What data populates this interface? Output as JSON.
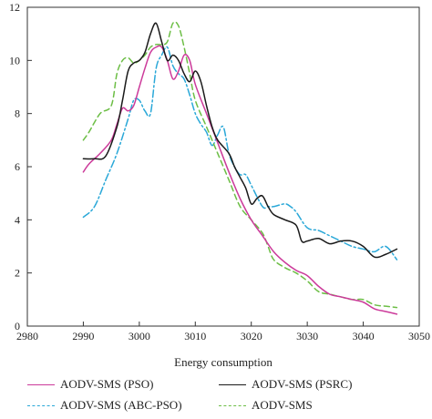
{
  "chart_data": {
    "type": "line",
    "xlabel": "Energy consumption",
    "ylabel": "",
    "xlim": [
      2980,
      3050
    ],
    "ylim": [
      0,
      12
    ],
    "xticks": [
      2980,
      2990,
      3000,
      3010,
      3020,
      3030,
      3040,
      3050
    ],
    "yticks": [
      0,
      2,
      4,
      6,
      8,
      10,
      12
    ],
    "grid": false,
    "legend_position": "bottom",
    "series": [
      {
        "name": "AODV-SMS (PSO)",
        "color": "#cc3a9a",
        "dash": "solid",
        "points": [
          [
            2990,
            5.8
          ],
          [
            2991,
            6.1
          ],
          [
            2993,
            6.5
          ],
          [
            2995,
            7.0
          ],
          [
            2996,
            7.6
          ],
          [
            2997,
            8.2
          ],
          [
            2998,
            8.1
          ],
          [
            2999,
            8.3
          ],
          [
            3000,
            9.0
          ],
          [
            3001,
            9.7
          ],
          [
            3002,
            10.3
          ],
          [
            3003,
            10.5
          ],
          [
            3004,
            10.5
          ],
          [
            3005,
            10.0
          ],
          [
            3006,
            9.3
          ],
          [
            3007,
            9.6
          ],
          [
            3008,
            10.2
          ],
          [
            3009,
            10.0
          ],
          [
            3010,
            9.1
          ],
          [
            3012,
            8.0
          ],
          [
            3014,
            6.9
          ],
          [
            3016,
            5.8
          ],
          [
            3018,
            4.8
          ],
          [
            3020,
            4.0
          ],
          [
            3022,
            3.4
          ],
          [
            3024,
            2.8
          ],
          [
            3026,
            2.4
          ],
          [
            3028,
            2.1
          ],
          [
            3030,
            1.9
          ],
          [
            3032,
            1.5
          ],
          [
            3034,
            1.2
          ],
          [
            3036,
            1.1
          ],
          [
            3038,
            1.0
          ],
          [
            3040,
            0.9
          ],
          [
            3042,
            0.65
          ],
          [
            3044,
            0.55
          ],
          [
            3046,
            0.45
          ]
        ]
      },
      {
        "name": "AODV-SMS (PSRC)",
        "color": "#1a1a1a",
        "dash": "solid",
        "points": [
          [
            2990,
            6.3
          ],
          [
            2992,
            6.3
          ],
          [
            2994,
            6.4
          ],
          [
            2996,
            7.5
          ],
          [
            2997,
            8.5
          ],
          [
            2998,
            9.6
          ],
          [
            2999,
            9.9
          ],
          [
            3000,
            10.0
          ],
          [
            3001,
            10.3
          ],
          [
            3002,
            11.0
          ],
          [
            3003,
            11.4
          ],
          [
            3004,
            10.7
          ],
          [
            3005,
            10.0
          ],
          [
            3006,
            10.2
          ],
          [
            3007,
            10.0
          ],
          [
            3008,
            9.5
          ],
          [
            3009,
            9.2
          ],
          [
            3010,
            9.6
          ],
          [
            3011,
            9.2
          ],
          [
            3012,
            8.3
          ],
          [
            3013,
            7.5
          ],
          [
            3014,
            7.0
          ],
          [
            3016,
            6.5
          ],
          [
            3017,
            6.0
          ],
          [
            3018,
            5.6
          ],
          [
            3019,
            5.2
          ],
          [
            3020,
            4.6
          ],
          [
            3021,
            4.8
          ],
          [
            3022,
            4.9
          ],
          [
            3023,
            4.5
          ],
          [
            3024,
            4.2
          ],
          [
            3026,
            4.0
          ],
          [
            3028,
            3.8
          ],
          [
            3029,
            3.2
          ],
          [
            3030,
            3.2
          ],
          [
            3032,
            3.3
          ],
          [
            3034,
            3.1
          ],
          [
            3036,
            3.2
          ],
          [
            3038,
            3.2
          ],
          [
            3040,
            3.0
          ],
          [
            3042,
            2.6
          ],
          [
            3044,
            2.7
          ],
          [
            3046,
            2.9
          ]
        ]
      },
      {
        "name": "AODV-SMS (ABC-PSO)",
        "color": "#2aa8d8",
        "dash": "dashdot",
        "points": [
          [
            2990,
            4.1
          ],
          [
            2992,
            4.5
          ],
          [
            2994,
            5.5
          ],
          [
            2996,
            6.5
          ],
          [
            2998,
            7.8
          ],
          [
            2999,
            8.5
          ],
          [
            3000,
            8.5
          ],
          [
            3001,
            8.1
          ],
          [
            3002,
            8.0
          ],
          [
            3003,
            9.7
          ],
          [
            3004,
            10.2
          ],
          [
            3005,
            10.5
          ],
          [
            3006,
            9.8
          ],
          [
            3007,
            9.5
          ],
          [
            3008,
            9.3
          ],
          [
            3009,
            8.7
          ],
          [
            3010,
            8.0
          ],
          [
            3011,
            7.6
          ],
          [
            3012,
            7.3
          ],
          [
            3013,
            6.8
          ],
          [
            3014,
            7.2
          ],
          [
            3015,
            7.5
          ],
          [
            3016,
            6.5
          ],
          [
            3017,
            6.0
          ],
          [
            3018,
            5.7
          ],
          [
            3019,
            5.7
          ],
          [
            3020,
            5.3
          ],
          [
            3022,
            4.5
          ],
          [
            3023,
            4.5
          ],
          [
            3024,
            4.5
          ],
          [
            3026,
            4.6
          ],
          [
            3027,
            4.5
          ],
          [
            3028,
            4.3
          ],
          [
            3030,
            3.7
          ],
          [
            3032,
            3.6
          ],
          [
            3034,
            3.4
          ],
          [
            3036,
            3.2
          ],
          [
            3038,
            3.0
          ],
          [
            3040,
            2.9
          ],
          [
            3042,
            2.8
          ],
          [
            3044,
            3.0
          ],
          [
            3046,
            2.5
          ]
        ]
      },
      {
        "name": "AODV-SMS",
        "color": "#6cbe45",
        "dash": "dashed",
        "points": [
          [
            2990,
            7.0
          ],
          [
            2991,
            7.3
          ],
          [
            2993,
            8.0
          ],
          [
            2995,
            8.3
          ],
          [
            2996,
            9.5
          ],
          [
            2997,
            10.0
          ],
          [
            2998,
            10.1
          ],
          [
            2999,
            9.9
          ],
          [
            3000,
            10.0
          ],
          [
            3001,
            10.2
          ],
          [
            3002,
            10.5
          ],
          [
            3003,
            10.6
          ],
          [
            3004,
            10.6
          ],
          [
            3005,
            10.7
          ],
          [
            3006,
            11.4
          ],
          [
            3007,
            11.3
          ],
          [
            3008,
            10.5
          ],
          [
            3009,
            9.5
          ],
          [
            3010,
            8.5
          ],
          [
            3012,
            7.5
          ],
          [
            3014,
            6.5
          ],
          [
            3016,
            5.5
          ],
          [
            3018,
            4.5
          ],
          [
            3020,
            4.0
          ],
          [
            3022,
            3.5
          ],
          [
            3023,
            3.0
          ],
          [
            3024,
            2.5
          ],
          [
            3026,
            2.2
          ],
          [
            3028,
            2.0
          ],
          [
            3030,
            1.7
          ],
          [
            3032,
            1.3
          ],
          [
            3034,
            1.2
          ],
          [
            3036,
            1.1
          ],
          [
            3038,
            1.0
          ],
          [
            3040,
            1.0
          ],
          [
            3042,
            0.8
          ],
          [
            3044,
            0.75
          ],
          [
            3046,
            0.7
          ]
        ]
      }
    ]
  }
}
